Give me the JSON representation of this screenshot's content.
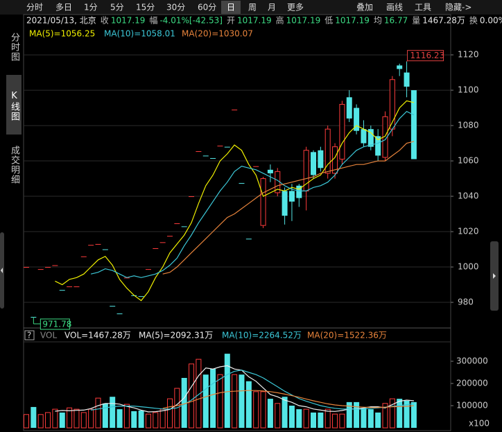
{
  "toolbar": {
    "periods": [
      "分时",
      "多日",
      "1分",
      "5分",
      "15分",
      "30分",
      "60分",
      "日",
      "周",
      "月",
      "更多"
    ],
    "active": "日",
    "tools": [
      "叠加",
      "画线",
      "工具",
      "隐藏->"
    ]
  },
  "sidebar": {
    "tabs": [
      "分时图",
      "K线图",
      "成交明细"
    ],
    "active": "K线图"
  },
  "info": {
    "date": "2021/05/13, 北京",
    "items": [
      {
        "label": "收",
        "value": "1017.19",
        "color": "#3ddc84"
      },
      {
        "label": "幅",
        "value": "-4.01%[-42.53]",
        "color": "#3ddc84"
      },
      {
        "label": "开",
        "value": "1017.19",
        "color": "#3ddc84"
      },
      {
        "label": "高",
        "value": "1017.19",
        "color": "#3ddc84"
      },
      {
        "label": "低",
        "value": "1017.19",
        "color": "#3ddc84"
      },
      {
        "label": "均",
        "value": "16.77",
        "color": "#3ddc84"
      },
      {
        "label": "量",
        "value": "1467.28万",
        "color": "#e6e6e6"
      },
      {
        "label": "换",
        "value": "0.00%",
        "color": "#e6e6e6"
      }
    ]
  },
  "chart_data": [
    {
      "type": "candlestick",
      "open": [
        1000,
        971.78,
        998.8,
        1000,
        1001,
        987,
        989,
        989,
        1006,
        1012.5,
        1013,
        1010,
        978,
        973.7,
        994,
        984,
        983.5,
        998.8,
        1010.6,
        1014,
        1017.6,
        1024.7,
        1023,
        1040,
        1065.5,
        1063,
        1061.6,
        1068.6,
        1068,
        1089,
        1047.5,
        1016,
        1057,
        1023.5,
        1055,
        1042,
        1043,
        1043,
        1046,
        1043,
        1065,
        1066,
        1053,
        1053,
        1061,
        1096,
        1090,
        1078,
        1078,
        1074,
        1062,
        1078,
        1114,
        1110,
        1100
      ],
      "high": [
        1000,
        971.78,
        998.8,
        1000,
        1001,
        987,
        989,
        989,
        1006,
        1012.5,
        1013,
        1010,
        978,
        973.7,
        994,
        984,
        983.5,
        998.8,
        1010.6,
        1014,
        1017.6,
        1024.7,
        1023,
        1040,
        1065.5,
        1063,
        1061.6,
        1068.6,
        1068,
        1089,
        1047.5,
        1016,
        1057,
        1051,
        1058,
        1056,
        1045,
        1047,
        1047,
        1068,
        1066,
        1068,
        1080,
        1070,
        1094,
        1100,
        1092,
        1083,
        1080,
        1078,
        1088,
        1108,
        1115,
        1116.23,
        1100
      ],
      "low": [
        1000,
        971.78,
        998.8,
        1000,
        1001,
        987,
        989,
        989,
        1006,
        1012.5,
        1013,
        1010,
        978,
        973.7,
        994,
        984,
        983.5,
        998.8,
        1010.6,
        1014,
        1017.6,
        1024.7,
        1023,
        1040,
        1065.5,
        1063,
        1061.6,
        1068.6,
        1068,
        1089,
        1047.5,
        1016,
        1057,
        1022,
        1048,
        1040,
        1024,
        1026,
        1034,
        1032,
        1050,
        1054,
        1050,
        1050,
        1058,
        1082,
        1075,
        1068,
        1066,
        1060,
        1060,
        1074,
        1108,
        1096,
        1061
      ],
      "close": [
        1000,
        971.78,
        998.8,
        1000,
        1001,
        987,
        989,
        989,
        1006,
        1012.5,
        1013,
        1010,
        978,
        973.7,
        994,
        984,
        983.5,
        998.8,
        1010.6,
        1014,
        1017.6,
        1024.7,
        1023,
        1040,
        1065.5,
        1063,
        1061.6,
        1068.6,
        1068,
        1089,
        1047.5,
        1016,
        1057,
        1050,
        1053,
        1054,
        1029,
        1037,
        1039,
        1066,
        1052,
        1056,
        1078,
        1068,
        1092,
        1084,
        1077,
        1070,
        1068,
        1063,
        1085,
        1106,
        1112,
        1102,
        1061
      ],
      "up_color": "#ff3c3c",
      "down_color": "#54e6e6",
      "series": [
        {
          "name": "MA(5)=1056.25",
          "color": "#f0f000",
          "values": [
            null,
            null,
            null,
            null,
            992,
            990,
            993,
            994,
            996,
            1000,
            1004,
            1006,
            1001,
            993,
            988,
            984,
            981,
            986,
            994,
            1000,
            1008,
            1013,
            1018,
            1025,
            1036,
            1046,
            1052,
            1060,
            1064,
            1069,
            1066,
            1058,
            1052,
            1040,
            1042,
            1044,
            1043,
            1045,
            1044,
            1047,
            1050,
            1052,
            1058,
            1062,
            1070,
            1076,
            1080,
            1078,
            1076,
            1072,
            1074,
            1082,
            1090,
            1094,
            1093
          ]
        },
        {
          "name": "MA(10)=1058.01",
          "color": "#3cc8d8",
          "values": [
            null,
            null,
            null,
            null,
            null,
            null,
            null,
            null,
            null,
            996,
            997,
            999,
            998,
            996,
            994,
            995,
            994,
            995,
            996,
            998,
            1001,
            1005,
            1012,
            1018,
            1025,
            1031,
            1037,
            1043,
            1048,
            1054,
            1057,
            1056,
            1055,
            1053,
            1051,
            1049,
            1046,
            1044,
            1043,
            1043,
            1045,
            1046,
            1048,
            1052,
            1058,
            1062,
            1066,
            1068,
            1069,
            1070,
            1072,
            1078,
            1084,
            1088,
            1086
          ]
        },
        {
          "name": "MA(20)=1030.07",
          "color": "#e8843c",
          "values": [
            null,
            null,
            null,
            null,
            null,
            null,
            null,
            null,
            null,
            null,
            null,
            null,
            null,
            null,
            null,
            null,
            null,
            null,
            null,
            996,
            997,
            1000,
            1004,
            1008,
            1012,
            1016,
            1020,
            1024,
            1028,
            1030,
            1033,
            1036,
            1039,
            1042,
            1044,
            1046,
            1047,
            1048,
            1049,
            1050,
            1051,
            1053,
            1054,
            1055,
            1056,
            1057,
            1058,
            1058,
            1059,
            1060,
            1060,
            1063,
            1066,
            1070,
            1071
          ]
        }
      ],
      "ylim": [
        965.5,
        1126.7
      ],
      "yticks": [
        980,
        1000,
        1020,
        1040,
        1060,
        1080,
        1100,
        1120
      ],
      "grid": true,
      "high_marker": 1116.23,
      "low_marker": 971.78
    },
    {
      "type": "bar",
      "help": "?",
      "indicator": "VOL",
      "title": "VOL=1467.28万",
      "values": [
        60000,
        94000,
        60000,
        69000,
        84000,
        69000,
        90000,
        84000,
        69000,
        84000,
        134000,
        110000,
        140000,
        84000,
        106000,
        75000,
        78000,
        62000,
        69000,
        84000,
        131000,
        178000,
        225000,
        288000,
        309000,
        240000,
        266000,
        240000,
        334000,
        240000,
        240000,
        210000,
        163000,
        163000,
        131000,
        110000,
        140000,
        100000,
        84000,
        84000,
        69000,
        69000,
        84000,
        62000,
        62000,
        116000,
        116000,
        90000,
        84000,
        69000,
        110000,
        131000,
        131000,
        122000,
        116000
      ],
      "series": [
        {
          "name": "MA(5)=2092.31万",
          "color": "#f0f0f0",
          "values": [
            null,
            null,
            null,
            null,
            75000,
            78000,
            77000,
            79000,
            80000,
            87000,
            100000,
            110000,
            110000,
            107000,
            97000,
            90000,
            80000,
            72000,
            73000,
            77000,
            83000,
            105000,
            135000,
            185000,
            235000,
            270000,
            265000,
            275000,
            280000,
            265000,
            260000,
            230000,
            210000,
            180000,
            150000,
            140000,
            125000,
            115000,
            100000,
            95000,
            85000,
            80000,
            75000,
            74000,
            78000,
            85000,
            85000,
            90000,
            95000,
            95000,
            90000,
            105000,
            120000,
            125000,
            122000
          ]
        },
        {
          "name": "MA(10)=2264.52万",
          "color": "#3cc8d8",
          "values": [
            null,
            null,
            null,
            null,
            null,
            null,
            null,
            null,
            null,
            80000,
            85000,
            90000,
            95000,
            98000,
            98000,
            98000,
            95000,
            92000,
            88000,
            85000,
            85000,
            90000,
            105000,
            125000,
            150000,
            175000,
            200000,
            220000,
            240000,
            255000,
            260000,
            250000,
            240000,
            225000,
            205000,
            185000,
            165000,
            148000,
            132000,
            120000,
            110000,
            100000,
            93000,
            88000,
            85000,
            85000,
            84000,
            85000,
            88000,
            90000,
            93000,
            97000,
            100000,
            104000,
            108000
          ]
        },
        {
          "name": "MA(20)=1522.36万",
          "color": "#e8843c",
          "values": [
            null,
            null,
            null,
            null,
            null,
            null,
            null,
            null,
            null,
            null,
            null,
            null,
            null,
            null,
            null,
            null,
            null,
            null,
            null,
            88000,
            95000,
            100000,
            108000,
            118000,
            130000,
            140000,
            150000,
            158000,
            163000,
            165000,
            167000,
            168000,
            168000,
            166000,
            163000,
            158000,
            152000,
            145000,
            138000,
            130000,
            122000,
            115000,
            108000,
            103000,
            100000,
            98000,
            95000,
            93000,
            92000,
            92000,
            93000,
            95000,
            96000,
            97000,
            100000
          ]
        }
      ],
      "ylim": [
        0,
        387500
      ],
      "yticks": [
        100000,
        200000,
        300000
      ],
      "unit_label": "x100"
    }
  ]
}
